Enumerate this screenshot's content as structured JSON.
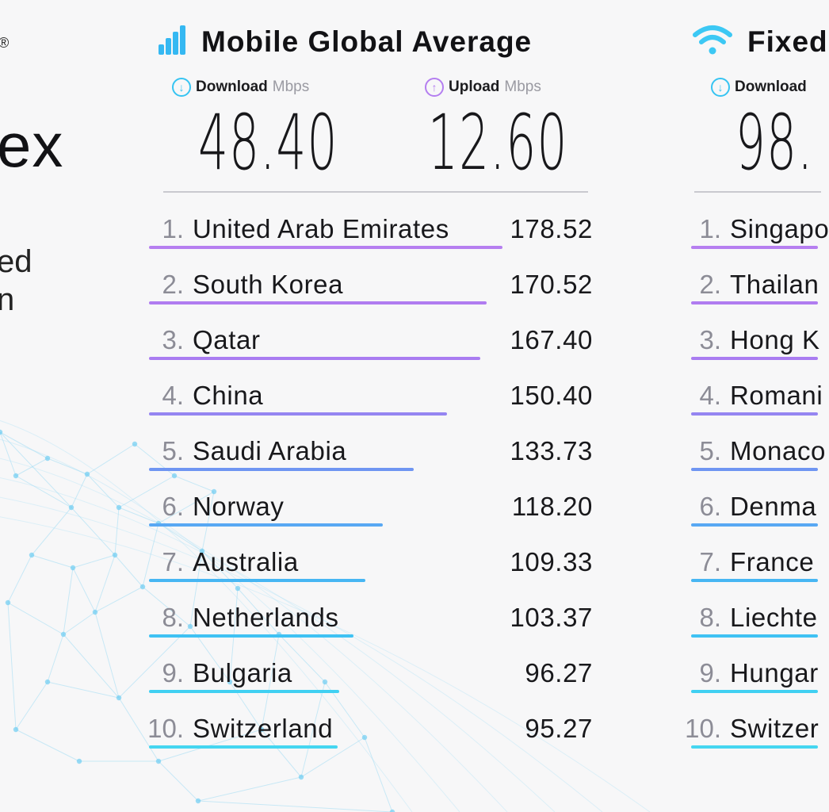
{
  "brand": {
    "registered_mark": "®",
    "word_fragment": "ex",
    "subtitle_fragments": [
      "ed",
      "n"
    ]
  },
  "mobile": {
    "title": "Mobile Global Average",
    "icon": "signal-bars-icon",
    "download": {
      "label": "Download",
      "unit": "Mbps",
      "value": "48.40",
      "icon": "download-arrow-icon"
    },
    "upload": {
      "label": "Upload",
      "unit": "Mbps",
      "value": "12.60",
      "icon": "upload-arrow-icon"
    },
    "rankings": [
      {
        "rank": "1.",
        "country": "United Arab Emirates",
        "speed": "178.52",
        "bar_fraction": 1.0,
        "color": "#b67ff0"
      },
      {
        "rank": "2.",
        "country": "South Korea",
        "speed": "170.52",
        "bar_fraction": 0.955,
        "color": "#b07cf0"
      },
      {
        "rank": "3.",
        "country": "Qatar",
        "speed": "167.40",
        "bar_fraction": 0.938,
        "color": "#a97cf1"
      },
      {
        "rank": "4.",
        "country": "China",
        "speed": "150.40",
        "bar_fraction": 0.843,
        "color": "#9585f1"
      },
      {
        "rank": "5.",
        "country": "Saudi Arabia",
        "speed": "133.73",
        "bar_fraction": 0.749,
        "color": "#6f95f2"
      },
      {
        "rank": "6.",
        "country": "Norway",
        "speed": "118.20",
        "bar_fraction": 0.662,
        "color": "#58a8f3"
      },
      {
        "rank": "7.",
        "country": "Australia",
        "speed": "109.33",
        "bar_fraction": 0.612,
        "color": "#47b6f3"
      },
      {
        "rank": "8.",
        "country": "Netherlands",
        "speed": "103.37",
        "bar_fraction": 0.579,
        "color": "#3fc2f3"
      },
      {
        "rank": "9.",
        "country": "Bulgaria",
        "speed": "96.27",
        "bar_fraction": 0.539,
        "color": "#40d0f2"
      },
      {
        "rank": "10.",
        "country": "Switzerland",
        "speed": "95.27",
        "bar_fraction": 0.534,
        "color": "#45d6f0"
      }
    ]
  },
  "fixed": {
    "title": "Fixed",
    "icon": "wifi-icon",
    "download": {
      "label": "Download",
      "value": "98.",
      "icon": "download-arrow-icon"
    },
    "rankings": [
      {
        "rank": "1.",
        "country": "Singapo",
        "color": "#b67ff0"
      },
      {
        "rank": "2.",
        "country": "Thailan",
        "color": "#b07cf0"
      },
      {
        "rank": "3.",
        "country": "Hong K",
        "color": "#a97cf1"
      },
      {
        "rank": "4.",
        "country": "Romani",
        "color": "#9585f1"
      },
      {
        "rank": "5.",
        "country": "Monaco",
        "color": "#6f95f2"
      },
      {
        "rank": "6.",
        "country": "Denma",
        "color": "#58a8f3"
      },
      {
        "rank": "7.",
        "country": "France",
        "color": "#47b6f3"
      },
      {
        "rank": "8.",
        "country": "Liechte",
        "color": "#3fc2f3"
      },
      {
        "rank": "9.",
        "country": "Hungar",
        "color": "#40d0f2"
      },
      {
        "rank": "10.",
        "country": "Switzer",
        "color": "#45d6f0"
      }
    ]
  },
  "colors": {
    "download_accent": "#36c4f2",
    "upload_accent": "#b47ef0",
    "signal_icon": "#35b8f2",
    "wifi_icon": "#3cc8f4"
  }
}
